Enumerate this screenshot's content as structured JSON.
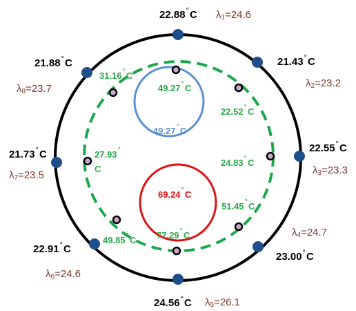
{
  "outer_sensors": [
    {
      "temp": "22.88",
      "unit": "C",
      "lambda_index": "1",
      "lambda_value": "24.6"
    },
    {
      "temp": "21.43",
      "unit": "C",
      "lambda_index": "2",
      "lambda_value": "23.2"
    },
    {
      "temp": "22.55",
      "unit": "C",
      "lambda_index": "3",
      "lambda_value": "23.3"
    },
    {
      "temp": "23.00",
      "unit": "C",
      "lambda_index": "4",
      "lambda_value": "24.7"
    },
    {
      "temp": "24.56",
      "unit": "C",
      "lambda_index": "5",
      "lambda_value": "26.1"
    },
    {
      "temp": "22.91",
      "unit": "C",
      "lambda_index": "6",
      "lambda_value": "24.6"
    },
    {
      "temp": "21.73",
      "unit": "C",
      "lambda_index": "7",
      "lambda_value": "23.5"
    },
    {
      "temp": "21.88",
      "unit": "C",
      "lambda_index": "8",
      "lambda_value": "23.7"
    }
  ],
  "inner_points": [
    {
      "temp": "49.27",
      "unit": "C"
    },
    {
      "temp": "22.52",
      "unit": "C"
    },
    {
      "temp": "24.83",
      "unit": "C"
    },
    {
      "temp": "51.45",
      "unit": "C"
    },
    {
      "temp": "77.29",
      "unit": "C"
    },
    {
      "temp": "49.85",
      "unit": "C"
    },
    {
      "temp": "27.93",
      "unit": "C"
    },
    {
      "temp": "31.16",
      "unit": "C"
    }
  ],
  "blue_circle": {
    "temp": "49.27",
    "unit": "C"
  },
  "red_circle": {
    "temp": "69.24",
    "unit": "C"
  },
  "lambda_symbol": "λ",
  "degree_symbol": "°",
  "colors": {
    "outer_ring": "#000000",
    "outer_sensor_dot": "#1f4e8c",
    "dashed_ring": "#1aa84a",
    "inner_point_fill": "#c9a8cc",
    "blue_circle": "#5b8fd0",
    "red_circle": "#e01010",
    "lambda_text": "#7a3a2e",
    "green_text": "#2aaa4a",
    "red_text": "#e01010",
    "blue_text": "#5b8fd0"
  }
}
